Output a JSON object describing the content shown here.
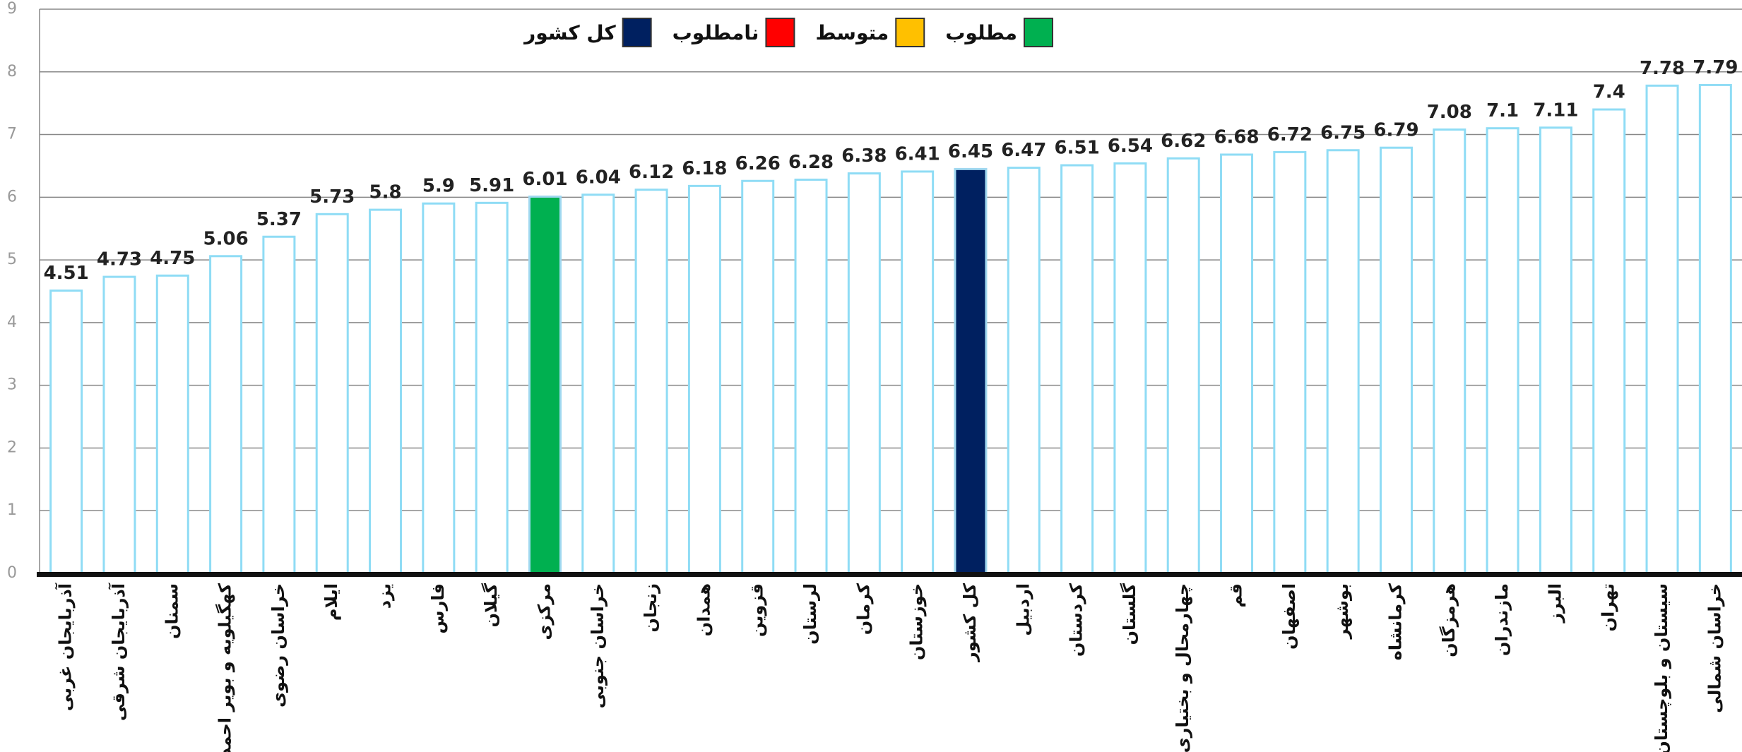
{
  "chart_data": {
    "type": "bar",
    "categories": [
      "آذربایجان غربی",
      "آذربایجان شرقی",
      "سمنان",
      "کهگیلویه و بویر احمد",
      "خراسان رضوی",
      "ایلام",
      "یزد",
      "فارس",
      "گیلان",
      "مرکزی",
      "خراسان جنوبی",
      "زنجان",
      "همدان",
      "قزوین",
      "لرستان",
      "کرمان",
      "خوزستان",
      "کل کشور",
      "اردبیل",
      "کردستان",
      "گلستان",
      "چهارمحال و بختیاری",
      "قم",
      "اصفهان",
      "بوشهر",
      "کرمانشاه",
      "هرمزگان",
      "مازندران",
      "البرز",
      "تهران",
      "سیستان و بلوچستان",
      "خراسان شمالی"
    ],
    "values": [
      4.51,
      4.73,
      4.75,
      5.06,
      5.37,
      5.73,
      5.8,
      5.9,
      5.91,
      6.01,
      6.04,
      6.12,
      6.18,
      6.26,
      6.28,
      6.38,
      6.41,
      6.45,
      6.47,
      6.51,
      6.54,
      6.62,
      6.68,
      6.72,
      6.75,
      6.79,
      7.08,
      7.1,
      7.11,
      7.4,
      7.78,
      7.79
    ],
    "colors": [
      "#ffffff",
      "#ffffff",
      "#ffffff",
      "#ffffff",
      "#ffffff",
      "#ffffff",
      "#ffffff",
      "#ffffff",
      "#ffffff",
      "#00b050",
      "#ffffff",
      "#ffffff",
      "#ffffff",
      "#ffffff",
      "#ffffff",
      "#ffffff",
      "#ffffff",
      "#002060",
      "#ffffff",
      "#ffffff",
      "#ffffff",
      "#ffffff",
      "#ffffff",
      "#ffffff",
      "#ffffff",
      "#ffffff",
      "#ffffff",
      "#ffffff",
      "#ffffff",
      "#ffffff",
      "#ffffff",
      "#ffffff"
    ],
    "legend": [
      {
        "name": "مطلوب",
        "color": "#00b050"
      },
      {
        "name": "متوسط",
        "color": "#ffc000"
      },
      {
        "name": "نامطلوب",
        "color": "#ff0000"
      },
      {
        "name": "کل کشور",
        "color": "#002060"
      }
    ],
    "ylim": [
      0,
      9
    ],
    "yticks": [
      0,
      1,
      2,
      3,
      4,
      5,
      6,
      7,
      8,
      9
    ],
    "grid": true
  }
}
